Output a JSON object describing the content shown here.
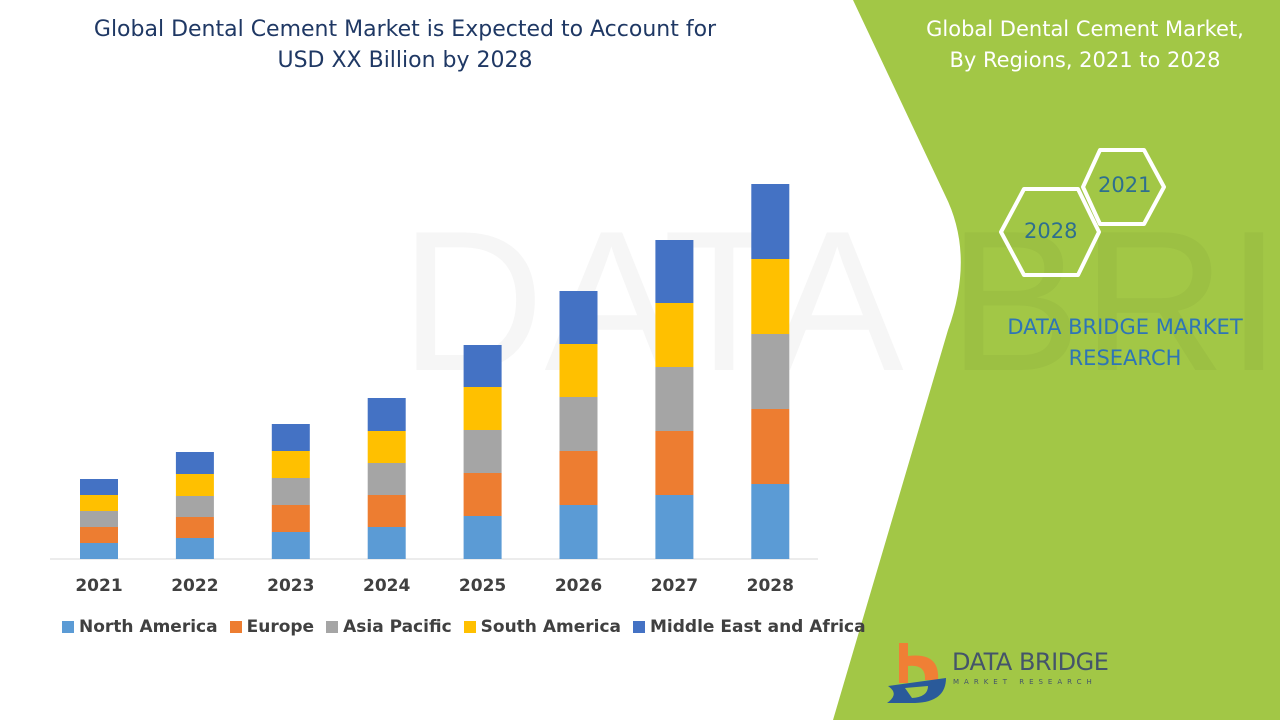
{
  "header": {
    "title_line1": "Global Dental Cement Market is Expected to Account for",
    "title_line2": "USD XX Billion by 2028"
  },
  "side_panel": {
    "title_line1": "Global Dental Cement Market,",
    "title_line2": "By Regions, 2021 to 2028",
    "hex_start": "2021",
    "hex_end": "2028",
    "brand_line1": "DATA BRIDGE MARKET",
    "brand_line2": "RESEARCH",
    "logo_name": "DATA BRIDGE",
    "logo_tagline": "MARKET RESEARCH",
    "panel_color": "#a2c746"
  },
  "chart_data": {
    "type": "bar",
    "stacked": true,
    "title": "",
    "xlabel": "",
    "ylabel": "",
    "ylim": [
      0,
      40
    ],
    "grid": false,
    "legend_placement": "bottom",
    "categories": [
      "2021",
      "2022",
      "2023",
      "2024",
      "2025",
      "2026",
      "2027",
      "2028"
    ],
    "series": [
      {
        "name": "North America",
        "color": "#5b9bd5",
        "values": [
          1.6,
          2.1,
          2.7,
          3.2,
          4.3,
          5.4,
          6.4,
          7.5
        ]
      },
      {
        "name": "Europe",
        "color": "#ed7d31",
        "values": [
          1.6,
          2.1,
          2.7,
          3.2,
          4.3,
          5.4,
          6.4,
          7.5
        ]
      },
      {
        "name": "Asia Pacific",
        "color": "#a5a5a5",
        "values": [
          1.6,
          2.1,
          2.7,
          3.2,
          4.3,
          5.4,
          6.4,
          7.5
        ]
      },
      {
        "name": "South America",
        "color": "#ffc000",
        "values": [
          1.6,
          2.2,
          2.7,
          3.2,
          4.3,
          5.3,
          6.4,
          7.5
        ]
      },
      {
        "name": "Middle East and Africa",
        "color": "#4472c4",
        "values": [
          1.6,
          2.2,
          2.7,
          3.3,
          4.2,
          5.3,
          6.3,
          7.5
        ]
      }
    ]
  }
}
